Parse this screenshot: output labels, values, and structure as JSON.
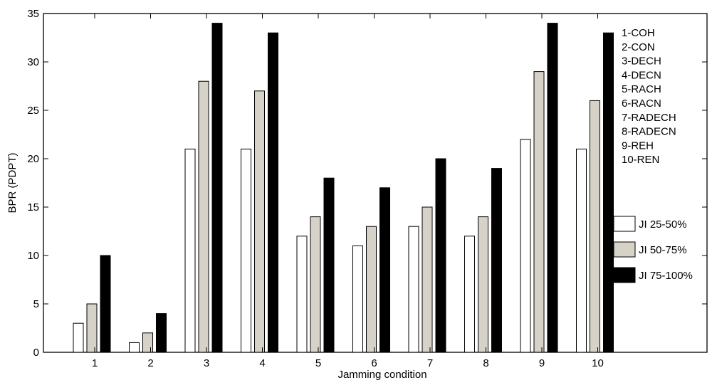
{
  "chart_data": {
    "type": "bar",
    "title": "",
    "xlabel": "Jamming condition",
    "ylabel": "BPR (PDPT)",
    "ylim": [
      0,
      35
    ],
    "yticks": [
      0,
      5,
      10,
      15,
      20,
      25,
      30,
      35
    ],
    "categories": [
      "1",
      "2",
      "3",
      "4",
      "5",
      "6",
      "7",
      "8",
      "9",
      "10"
    ],
    "series": [
      {
        "name": "JI 25-50%",
        "color": "#ffffff",
        "values": [
          3,
          1,
          21,
          21,
          12,
          11,
          13,
          12,
          22,
          21
        ]
      },
      {
        "name": "JI 50-75%",
        "color": "#d6d2c8",
        "values": [
          5,
          2,
          28,
          27,
          14,
          13,
          15,
          14,
          29,
          26
        ]
      },
      {
        "name": "JI 75-100%",
        "color": "#000000",
        "values": [
          10,
          4,
          34,
          33,
          18,
          17,
          20,
          19,
          34,
          33
        ]
      }
    ],
    "annotations": [
      "1-COH",
      "2-CON",
      "3-DECH",
      "4-DECN",
      "5-RACH",
      "6-RACN",
      "7-RADECH",
      "8-RADECN",
      "9-REH",
      "10-REN"
    ],
    "legend_position": "right",
    "grid": false
  }
}
